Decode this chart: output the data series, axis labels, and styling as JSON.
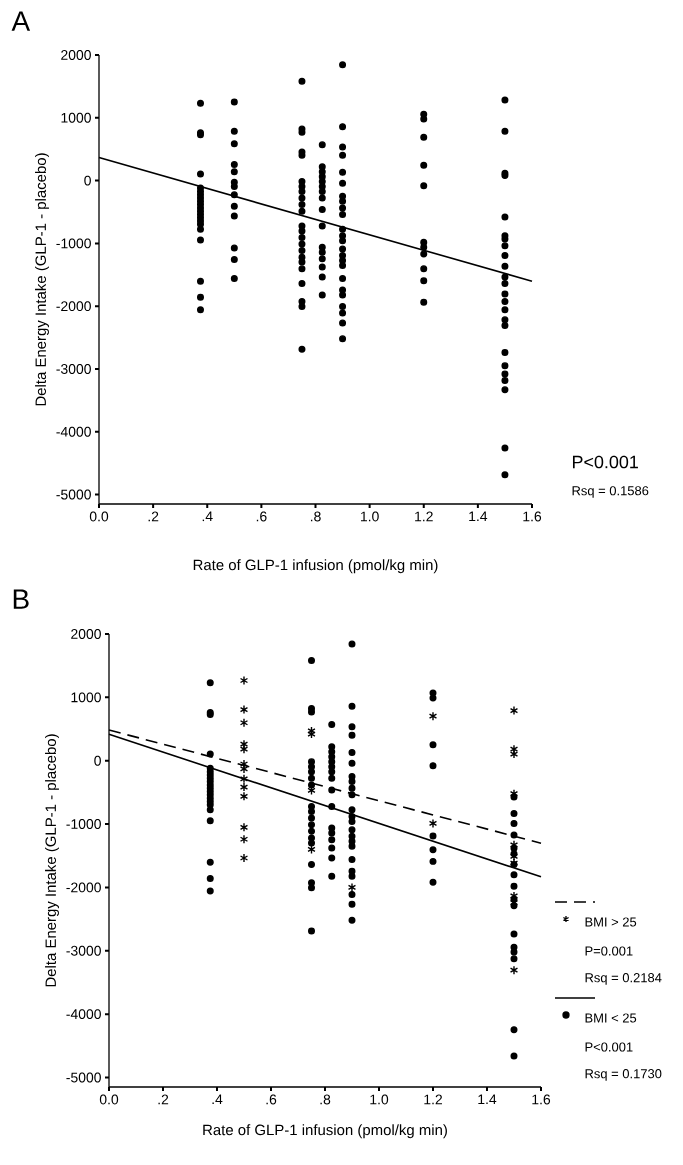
{
  "chart_data": [
    {
      "type": "scatter",
      "title": "A",
      "xlabel": "Rate of GLP-1 infusion (pmol/kg min)",
      "ylabel": "Delta Energy Intake  (GLP-1 - placebo)",
      "xlim": [
        0,
        1.6
      ],
      "ylim": [
        -5150,
        2000
      ],
      "xticks": [
        {
          "value": 0,
          "label": "0.0"
        },
        {
          "value": 0.2,
          "label": ".2"
        },
        {
          "value": 0.4,
          "label": ".4"
        },
        {
          "value": 0.6,
          "label": ".6"
        },
        {
          "value": 0.8,
          "label": ".8"
        },
        {
          "value": 1.0,
          "label": "1.0"
        },
        {
          "value": 1.2,
          "label": "1.2"
        },
        {
          "value": 1.4,
          "label": "1.4"
        },
        {
          "value": 1.6,
          "label": "1.6"
        }
      ],
      "yticks": [
        -5000,
        -4000,
        -3000,
        -2000,
        -1000,
        0,
        1000,
        2000
      ],
      "grid": false,
      "legend": false,
      "series": [
        {
          "type": "scatter",
          "color": "#000000",
          "marker": "circle",
          "x": [
            0.375,
            0.375,
            0.375,
            0.375,
            0.375,
            0.375,
            0.375,
            0.375,
            0.375,
            0.375,
            0.375,
            0.375,
            0.375,
            0.375,
            0.375,
            0.375,
            0.375,
            0.375,
            0.375,
            0.375,
            0.375,
            0.5,
            0.5,
            0.5,
            0.5,
            0.5,
            0.5,
            0.5,
            0.5,
            0.5,
            0.5,
            0.5,
            0.5,
            0.5,
            0.75,
            0.75,
            0.75,
            0.75,
            0.75,
            0.75,
            0.75,
            0.75,
            0.75,
            0.75,
            0.75,
            0.75,
            0.75,
            0.75,
            0.75,
            0.75,
            0.75,
            0.75,
            0.75,
            0.75,
            0.75,
            0.75,
            0.75,
            0.825,
            0.825,
            0.825,
            0.825,
            0.825,
            0.825,
            0.825,
            0.825,
            0.825,
            0.825,
            0.825,
            0.825,
            0.825,
            0.825,
            0.825,
            0.825,
            0.9,
            0.9,
            0.9,
            0.9,
            0.9,
            0.9,
            0.9,
            0.9,
            0.9,
            0.9,
            0.9,
            0.9,
            0.9,
            0.9,
            0.9,
            0.9,
            0.9,
            0.9,
            0.9,
            0.9,
            0.9,
            0.9,
            0.9,
            0.9,
            1.2,
            1.2,
            1.2,
            1.2,
            1.2,
            1.2,
            1.2,
            1.2,
            1.2,
            1.2,
            1.2,
            1.5,
            1.5,
            1.5,
            1.5,
            1.5,
            1.5,
            1.5,
            1.5,
            1.5,
            1.5,
            1.5,
            1.5,
            1.5,
            1.5,
            1.5,
            1.5,
            1.5,
            1.5,
            1.5,
            1.5,
            1.5,
            1.5,
            1.5,
            1.5
          ],
          "values": [
            1230,
            760,
            728,
            105,
            -120,
            -173,
            -225,
            -277,
            -330,
            -382,
            -435,
            -487,
            -539,
            -592,
            -644,
            -696,
            -775,
            -948,
            -1602,
            -1859,
            -2058,
            1251,
            785,
            586,
            257,
            141,
            -26,
            -94,
            -225,
            -408,
            -565,
            -1073,
            -1257,
            -1560,
            1581,
            822,
            770,
            455,
            403,
            -16,
            -94,
            -173,
            -277,
            -382,
            -487,
            -723,
            -801,
            -906,
            -1010,
            -1115,
            -1220,
            -1298,
            -1403,
            -1639,
            -1927,
            -2005,
            -2686,
            571,
            220,
            141,
            63,
            -16,
            -94,
            -173,
            -277,
            -461,
            -723,
            -1063,
            -1141,
            -1246,
            -1377,
            -1534,
            -1822,
            1843,
            859,
            534,
            403,
            131,
            -42,
            -251,
            -330,
            -435,
            -539,
            -775,
            -880,
            -958,
            -1089,
            -1194,
            -1272,
            -1351,
            -1560,
            -1743,
            -1822,
            -2005,
            -2110,
            -2267,
            -2518,
            1058,
            979,
            691,
            246,
            -84,
            -984,
            -1063,
            -1168,
            -1403,
            -1597,
            -1937,
            1283,
            785,
            115,
            79,
            -581,
            -880,
            -932,
            -1037,
            -1194,
            -1366,
            -1534,
            -1639,
            -1806,
            -1927,
            -2058,
            -2215,
            -2309,
            -2738,
            -2948,
            -3079,
            -3183,
            -3330,
            -4257,
            -4686
          ]
        },
        {
          "type": "line",
          "color": "#000000",
          "line_style": "solid",
          "marker": "none",
          "x": [
            0,
            1.6
          ],
          "values": [
            366,
            -1602
          ]
        }
      ],
      "annotations": [
        "P<0.001",
        "Rsq = 0.1586"
      ]
    },
    {
      "type": "scatter",
      "title": "B",
      "xlabel": "Rate of GLP-1 infusion (pmol/kg min)",
      "ylabel": "Delta Energy Intake (GLP-1 - placebo)",
      "xlim": [
        0,
        1.6
      ],
      "ylim": [
        -5150,
        2000
      ],
      "xticks": [
        {
          "value": 0,
          "label": "0.0"
        },
        {
          "value": 0.2,
          "label": ".2"
        },
        {
          "value": 0.4,
          "label": ".4"
        },
        {
          "value": 0.6,
          "label": ".6"
        },
        {
          "value": 0.8,
          "label": ".8"
        },
        {
          "value": 1.0,
          "label": "1.0"
        },
        {
          "value": 1.2,
          "label": "1.2"
        },
        {
          "value": 1.4,
          "label": "1.4"
        },
        {
          "value": 1.6,
          "label": "1.6"
        }
      ],
      "yticks": [
        -5000,
        -4000,
        -3000,
        -2000,
        -1000,
        0,
        1000,
        2000
      ],
      "grid": false,
      "legend": "bottom right",
      "series": [
        {
          "type": "line",
          "color": "#000000",
          "line_style": "dashed",
          "x": [
            0,
            1.6
          ],
          "values": [
            484,
            -1302
          ]
        },
        {
          "type": "scatter",
          "name": "BMI > 25",
          "color": "#000000",
          "marker": "cross",
          "x": [
            0.5,
            0.5,
            0.5,
            0.5,
            0.5,
            0.5,
            0.5,
            0.5,
            0.5,
            0.5,
            0.5,
            0.5,
            0.5,
            0.75,
            0.75,
            0.75,
            0.75,
            0.9,
            1.2,
            1.2,
            1.5,
            1.5,
            1.5,
            1.5,
            1.5,
            1.5,
            1.5,
            1.5,
            1.5,
            1.5
          ],
          "values": [
            1266,
            807,
            599,
            260,
            182,
            -52,
            -130,
            -286,
            -417,
            -563,
            -1052,
            -1240,
            -1536,
            470,
            420,
            -470,
            -1400,
            -2000,
            703,
            -990,
            792,
            182,
            104,
            -520,
            -1328,
            -1510,
            -1615,
            -2135,
            -2240,
            -3307
          ]
        },
        {
          "type": "line",
          "color": "#000000",
          "line_style": "solid",
          "x": [
            0,
            1.6
          ],
          "values": [
            417,
            -1833
          ]
        },
        {
          "type": "scatter",
          "name": "BMI < 25",
          "color": "#000000",
          "marker": "circle",
          "x": [
            0.375,
            0.375,
            0.375,
            0.375,
            0.375,
            0.375,
            0.375,
            0.375,
            0.375,
            0.375,
            0.375,
            0.375,
            0.375,
            0.375,
            0.375,
            0.375,
            0.375,
            0.375,
            0.375,
            0.375,
            0.375,
            0.75,
            0.75,
            0.75,
            0.75,
            0.75,
            0.75,
            0.75,
            0.75,
            0.75,
            0.75,
            0.75,
            0.75,
            0.75,
            0.75,
            0.75,
            0.75,
            0.75,
            0.75,
            0.75,
            0.825,
            0.825,
            0.825,
            0.825,
            0.825,
            0.825,
            0.825,
            0.825,
            0.825,
            0.825,
            0.825,
            0.825,
            0.825,
            0.825,
            0.825,
            0.825,
            0.9,
            0.9,
            0.9,
            0.9,
            0.9,
            0.9,
            0.9,
            0.9,
            0.9,
            0.9,
            0.9,
            0.9,
            0.9,
            0.9,
            0.9,
            0.9,
            0.9,
            0.9,
            0.9,
            0.9,
            0.9,
            0.9,
            0.9,
            1.2,
            1.2,
            1.2,
            1.2,
            1.2,
            1.2,
            1.2,
            1.2,
            1.5,
            1.5,
            1.5,
            1.5,
            1.5,
            1.5,
            1.5,
            1.5,
            1.5,
            1.5,
            1.5,
            1.5,
            1.5,
            1.5,
            1.5,
            1.5,
            1.5
          ],
          "values": [
            1230,
            760,
            728,
            105,
            -120,
            -173,
            -225,
            -277,
            -330,
            -382,
            -435,
            -487,
            -539,
            -592,
            -644,
            -696,
            -775,
            -948,
            -1602,
            -1859,
            -2058,
            1581,
            822,
            770,
            -16,
            -94,
            -173,
            -277,
            -382,
            -723,
            -801,
            -906,
            -1010,
            -1115,
            -1220,
            -1298,
            -1639,
            -1927,
            -2005,
            -2686,
            571,
            220,
            141,
            63,
            -16,
            -94,
            -173,
            -277,
            -461,
            -723,
            -1063,
            -1141,
            -1246,
            -1377,
            -1534,
            -1822,
            1843,
            859,
            534,
            403,
            131,
            -42,
            -251,
            -330,
            -435,
            -539,
            -775,
            -880,
            -958,
            -1089,
            -1194,
            -1272,
            -1351,
            -1560,
            -1743,
            -1822,
            -2110,
            -2267,
            -2518,
            1068,
            990,
            250,
            -78,
            -1187,
            -1406,
            -1589,
            -1917,
            -573,
            -833,
            -990,
            -1172,
            -1380,
            -1470,
            -1640,
            -1800,
            -1980,
            -2187,
            -2290,
            -2734,
            -2943,
            -3020,
            -3125,
            -4245,
            -4661
          ]
        }
      ],
      "annotations": [
        "P=0.001",
        "Rsq = 0.2184",
        "P<0.001",
        "Rsq = 0.1730"
      ]
    }
  ]
}
